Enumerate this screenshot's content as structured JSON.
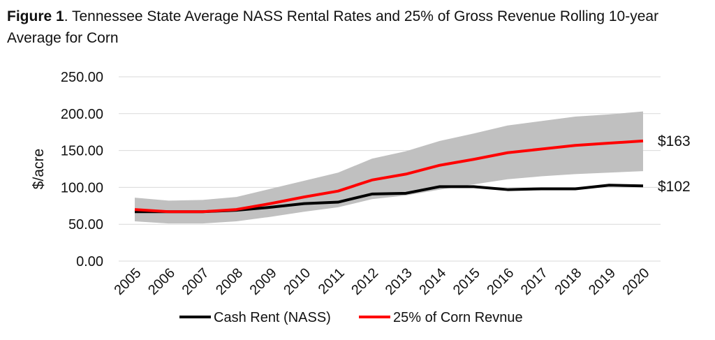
{
  "title": {
    "prefix": "Figure 1",
    "text": ". Tennessee State Average NASS Rental Rates and 25% of Gross Revenue Rolling 10-year Average for Corn"
  },
  "chart_data": {
    "type": "line",
    "ylabel": "$/acre",
    "xlabel": "",
    "ylim": [
      0,
      250
    ],
    "yticks": [
      "0.00",
      "50.00",
      "100.00",
      "150.00",
      "200.00",
      "250.00"
    ],
    "grid": true,
    "legend_position": "bottom",
    "categories": [
      "2005",
      "2006",
      "2007",
      "2008",
      "2009",
      "2010",
      "2011",
      "2012",
      "2013",
      "2014",
      "2015",
      "2016",
      "2017",
      "2018",
      "2019",
      "2020"
    ],
    "band": {
      "color": "#c0c0c0",
      "upper": [
        86,
        82,
        83,
        87,
        98,
        109,
        120,
        139,
        149,
        163,
        173,
        184,
        190,
        196,
        199,
        203
      ],
      "lower": [
        54,
        51,
        51,
        54,
        60,
        67,
        73,
        84,
        89,
        97,
        104,
        111,
        115,
        118,
        120,
        122
      ]
    },
    "series": [
      {
        "name": "Cash Rent (NASS)",
        "color": "#000000",
        "values": [
          67,
          67,
          67,
          69,
          73,
          78,
          80,
          91,
          92,
          101,
          101,
          97,
          98,
          98,
          103,
          102
        ]
      },
      {
        "name": "25% of Corn Revnue",
        "color": "#ff0000",
        "values": [
          70,
          67,
          67,
          70,
          78,
          87,
          95,
          110,
          118,
          130,
          138,
          147,
          152,
          157,
          160,
          163
        ]
      }
    ],
    "end_labels": [
      "$163",
      "$102"
    ]
  }
}
